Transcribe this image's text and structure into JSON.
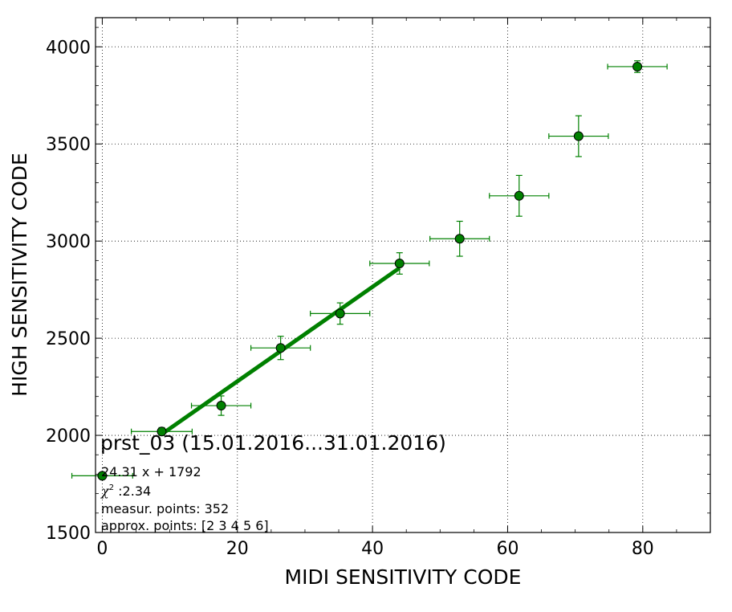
{
  "chart_data": {
    "type": "scatter",
    "xlabel": "MIDI SENSITIVITY CODE",
    "ylabel": "HIGH SENSITIVITY CODE",
    "xlim": [
      -1,
      90
    ],
    "ylim": [
      1500,
      4150
    ],
    "x_ticks": [
      0,
      20,
      40,
      60,
      80
    ],
    "y_ticks": [
      1500,
      2000,
      2500,
      3000,
      3500,
      4000
    ],
    "grid": true,
    "points": [
      {
        "x": 0.0,
        "y": 1792,
        "xerr": 4.5,
        "yerr": 0
      },
      {
        "x": 8.8,
        "y": 2020,
        "xerr": 4.5,
        "yerr": 20
      },
      {
        "x": 17.6,
        "y": 2153,
        "xerr": 4.4,
        "yerr": 50
      },
      {
        "x": 26.4,
        "y": 2450,
        "xerr": 4.4,
        "yerr": 60
      },
      {
        "x": 35.2,
        "y": 2627,
        "xerr": 4.4,
        "yerr": 55
      },
      {
        "x": 44.0,
        "y": 2885,
        "xerr": 4.4,
        "yerr": 55
      },
      {
        "x": 52.9,
        "y": 3012,
        "xerr": 4.4,
        "yerr": 90
      },
      {
        "x": 61.7,
        "y": 3233,
        "xerr": 4.4,
        "yerr": 105
      },
      {
        "x": 70.5,
        "y": 3540,
        "xerr": 4.4,
        "yerr": 105
      },
      {
        "x": 79.2,
        "y": 3898,
        "xerr": 4.4,
        "yerr": 30
      }
    ],
    "fit": {
      "slope": 24.31,
      "intercept": 1792,
      "x_range": [
        8.8,
        44.0
      ]
    },
    "annotation": {
      "title": "prst_03 (15.01.2016...31.01.2016)",
      "equation": "24.31 x + 1792",
      "chi_symbol": "χ",
      "chi_value": " :2.34",
      "measur_points": "measur. points: 352",
      "approx_points": "approx. points: [2 3 4 5 6]"
    },
    "colors": {
      "marker": "#008000",
      "errorbar": "#008000",
      "fit_line": "#008000",
      "grid": "#000000"
    }
  }
}
